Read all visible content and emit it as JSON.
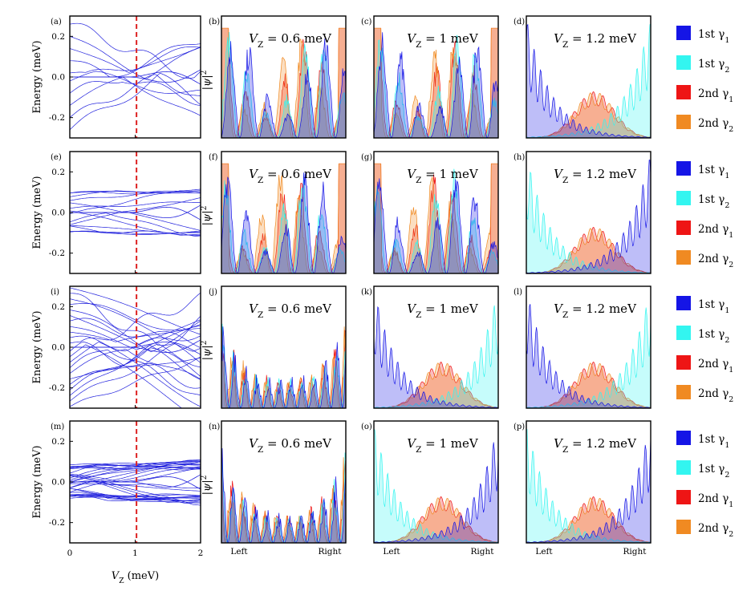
{
  "chart_data": {
    "type": "multi-panel",
    "grid": "4 rows x 4 columns (energy spectrum + three wavefunction panels per row)",
    "spectrum_panels": {
      "type": "line",
      "x_label": "V_Z (meV)",
      "y_label": "Energy (meV)",
      "x_ticks": [
        "0",
        "1",
        "2"
      ],
      "y_ticks": [
        "0.2",
        "0.0",
        "-0.2"
      ],
      "x_range": [
        0,
        2
      ],
      "y_range": [
        -0.3,
        0.3
      ],
      "marker_line": {
        "x": 1.02,
        "color": "#dd2222",
        "style": "dashed"
      },
      "line_color": "#2222dd"
    },
    "wavefunction_panels": {
      "type": "area",
      "y_label": "|ψ|²",
      "x_ticks": [
        "Left",
        "Right"
      ],
      "titles": [
        "V_Z = 0.6 meV",
        "V_Z = 1 meV",
        "V_Z = 1.2 meV"
      ],
      "title_values": [
        "0.6",
        "1",
        "1.2"
      ],
      "title_unit": "meV"
    },
    "legend": [
      {
        "label": "1st γ",
        "sub": "1",
        "color": "#1515e6"
      },
      {
        "label": "1st γ",
        "sub": "2",
        "color": "#33f5f0"
      },
      {
        "label": "2nd γ",
        "sub": "1",
        "color": "#ee1515"
      },
      {
        "label": "2nd γ",
        "sub": "2",
        "color": "#f08a22"
      }
    ],
    "rows": [
      {
        "labels": [
          "(a)",
          "(b)",
          "(c)",
          "(d)"
        ]
      },
      {
        "labels": [
          "(e)",
          "(f)",
          "(g)",
          "(h)"
        ]
      },
      {
        "labels": [
          "(i)",
          "(j)",
          "(k)",
          "(l)"
        ]
      },
      {
        "labels": [
          "(m)",
          "(n)",
          "(o)",
          "(p)"
        ]
      }
    ]
  }
}
